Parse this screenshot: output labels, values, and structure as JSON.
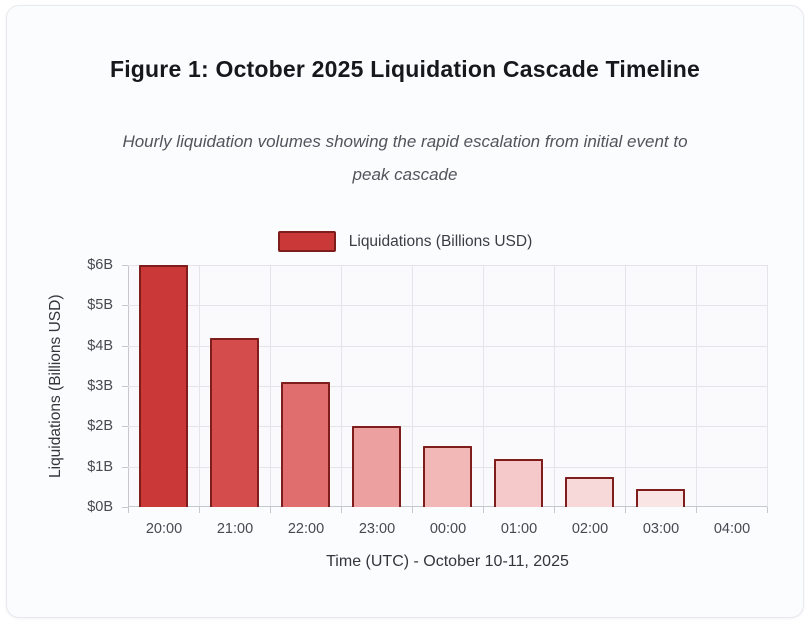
{
  "figure": {
    "title": "Figure 1: October 2025 Liquidation Cascade Timeline",
    "subtitle": "Hourly liquidation volumes showing the rapid escalation from initial event to peak cascade",
    "subtitle_line1": "Hourly liquidation volumes showing the rapid escalation from initial event to",
    "subtitle_line2": "peak cascade"
  },
  "legend": {
    "label": "Liquidations (Billions USD)",
    "swatch_fill": "#cb3838",
    "swatch_border": "#7f1d1d"
  },
  "chart_data": {
    "type": "bar",
    "title": "Figure 1: October 2025 Liquidation Cascade Timeline",
    "categories": [
      "20:00",
      "21:00",
      "22:00",
      "23:00",
      "00:00",
      "01:00",
      "02:00",
      "03:00",
      "04:00"
    ],
    "values": [
      6.0,
      4.2,
      3.1,
      2.0,
      1.5,
      1.2,
      0.75,
      0.45,
      0
    ],
    "series_label": "Liquidations (Billions USD)",
    "xlabel": "Time (UTC) - October 10-11, 2025",
    "ylabel": "Liquidations (Billions USD)",
    "ylim": [
      0,
      6
    ],
    "ytick_step": 1,
    "ytick_labels": [
      "$0B",
      "$1B",
      "$2B",
      "$3B",
      "$4B",
      "$5B",
      "$6B"
    ],
    "grid": true,
    "legend_position": "top",
    "bar_colors": [
      "#cb3838",
      "#d54c4c",
      "#e06e6e",
      "#eda0a0",
      "#f2b7b7",
      "#f5c9c9",
      "#f8d9d9",
      "#fae5e5",
      "#fdf1f1"
    ],
    "bar_border_color": "#7f1d1d"
  }
}
